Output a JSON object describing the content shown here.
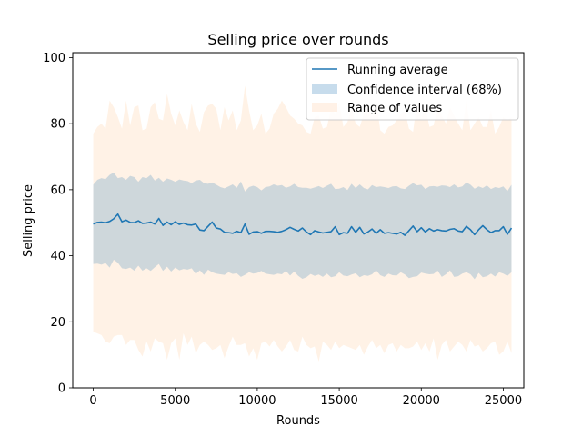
{
  "chart_data": {
    "type": "line",
    "title": "Selling price over rounds",
    "xlabel": "Rounds",
    "ylabel": "Selling price",
    "xlim": [
      -1250,
      26250
    ],
    "ylim": [
      0,
      101.5
    ],
    "xticks": [
      0,
      5000,
      10000,
      15000,
      20000,
      25000
    ],
    "yticks": [
      0,
      20,
      40,
      60,
      80,
      100
    ],
    "grid": false,
    "legend_position": "top-right",
    "colors": {
      "running_average": "#1f77b4",
      "confidence_interval": "#1f77b4",
      "confidence_interval_opacity": 0.22,
      "range_of_values": "#ff7f0e",
      "range_of_values_opacity": 0.1,
      "axes": "#000000"
    },
    "x_step": 250,
    "x_start": 0,
    "series": [
      {
        "name": "Running average",
        "kind": "line",
        "values": [
          49.6,
          50.1,
          50.2,
          50.0,
          50.4,
          51.2,
          52.6,
          50.3,
          50.8,
          50.1,
          50.0,
          50.6,
          49.8,
          49.9,
          50.2,
          49.6,
          51.3,
          49.2,
          50.2,
          49.4,
          50.3,
          49.5,
          49.9,
          49.4,
          49.3,
          49.6,
          47.8,
          47.6,
          48.9,
          50.2,
          48.4,
          48.1,
          47.1,
          47.0,
          46.8,
          47.4,
          47.0,
          49.6,
          46.5,
          47.2,
          47.3,
          46.8,
          47.4,
          47.4,
          47.3,
          47.1,
          47.4,
          47.9,
          48.6,
          48.0,
          47.5,
          48.4,
          47.2,
          46.4,
          47.6,
          47.2,
          46.9,
          47.1,
          47.3,
          48.8,
          46.4,
          47.0,
          46.8,
          48.8,
          47.1,
          48.6,
          46.6,
          47.2,
          48.1,
          46.8,
          47.9,
          46.8,
          47.0,
          46.8,
          46.6,
          47.1,
          46.2,
          47.6,
          49.0,
          47.3,
          48.5,
          47.2,
          48.2,
          47.5,
          47.9,
          47.6,
          47.5,
          48.0,
          48.2,
          47.5,
          47.3,
          48.9,
          47.9,
          46.4,
          47.9,
          49.1,
          47.9,
          47.0,
          47.6,
          47.6,
          48.8,
          46.5,
          48.4
        ]
      },
      {
        "name": "Confidence interval (68%)",
        "kind": "band",
        "upper": [
          61.5,
          63.0,
          63.5,
          63.2,
          64.5,
          65.2,
          63.5,
          63.8,
          63.0,
          64.2,
          63.8,
          62.4,
          63.8,
          63.5,
          64.5,
          62.8,
          63.6,
          62.4,
          63.4,
          63.0,
          62.4,
          63.1,
          62.8,
          62.6,
          62.0,
          62.8,
          63.0,
          62.0,
          61.8,
          62.2,
          61.5,
          60.8,
          60.4,
          61.0,
          61.6,
          60.6,
          62.5,
          59.5,
          60.8,
          61.2,
          60.8,
          59.8,
          60.8,
          61.0,
          61.6,
          61.2,
          61.4,
          60.6,
          61.0,
          61.8,
          60.8,
          60.6,
          60.6,
          60.3,
          60.7,
          61.1,
          60.5,
          61.2,
          61.8,
          60.2,
          60.3,
          60.8,
          59.9,
          61.8,
          60.5,
          61.6,
          60.5,
          60.1,
          61.4,
          60.8,
          61.0,
          60.8,
          60.5,
          61.0,
          61.1,
          60.4,
          60.2,
          61.2,
          62.0,
          61.3,
          61.5,
          60.2,
          61.0,
          61.1,
          60.9,
          61.3,
          61.2,
          60.8,
          61.6,
          60.7,
          61.0,
          62.2,
          61.5,
          60.3,
          61.0,
          60.5,
          61.3,
          60.2,
          60.8,
          60.5,
          61.0,
          59.6,
          61.5
        ],
        "lower": [
          37.5,
          37.6,
          37.3,
          37.8,
          36.4,
          38.8,
          37.9,
          36.2,
          36.0,
          36.4,
          35.5,
          37.0,
          35.5,
          36.2,
          35.4,
          36.5,
          37.5,
          35.4,
          36.7,
          35.2,
          36.4,
          35.6,
          36.0,
          35.8,
          36.2,
          34.5,
          35.6,
          34.2,
          35.8,
          35.0,
          34.6,
          34.4,
          34.2,
          35.0,
          34.5,
          34.7,
          33.6,
          34.2,
          35.0,
          34.6,
          34.8,
          35.4,
          34.6,
          34.4,
          34.2,
          34.6,
          34.4,
          35.4,
          34.0,
          35.2,
          33.9,
          33.0,
          33.5,
          34.5,
          33.9,
          34.3,
          33.6,
          34.6,
          33.5,
          33.8,
          35.0,
          34.0,
          33.8,
          34.3,
          34.7,
          33.5,
          34.1,
          33.9,
          34.4,
          35.6,
          34.1,
          33.6,
          34.6,
          34.1,
          34.0,
          35.0,
          34.3,
          33.2,
          33.6,
          33.8,
          34.9,
          34.6,
          34.4,
          34.5,
          35.5,
          33.6,
          34.4,
          35.6,
          33.6,
          33.8,
          34.6,
          35.0,
          34.4,
          32.9,
          34.8,
          33.5,
          33.8,
          34.6,
          33.7,
          35.0,
          34.6,
          33.9,
          35.0
        ]
      },
      {
        "name": "Range of values",
        "kind": "band",
        "upper": [
          77.0,
          79.0,
          80.0,
          78.5,
          87.0,
          85.0,
          82.0,
          78.5,
          87.0,
          79.5,
          85.0,
          85.5,
          78.0,
          78.5,
          85.0,
          86.5,
          81.5,
          81.0,
          89.0,
          83.0,
          79.5,
          84.0,
          80.5,
          78.0,
          86.0,
          80.0,
          77.5,
          83.5,
          85.5,
          86.0,
          84.5,
          78.0,
          85.0,
          81.0,
          84.0,
          78.0,
          81.0,
          91.5,
          84.0,
          78.0,
          79.5,
          83.0,
          77.0,
          78.5,
          83.0,
          84.5,
          87.0,
          85.0,
          82.5,
          81.5,
          80.0,
          79.5,
          77.5,
          77.0,
          82.0,
          82.5,
          78.5,
          79.0,
          84.5,
          83.0,
          86.5,
          79.0,
          80.5,
          85.0,
          80.0,
          79.0,
          83.0,
          86.0,
          82.0,
          87.0,
          78.0,
          77.0,
          79.0,
          79.5,
          81.0,
          83.0,
          84.0,
          78.5,
          77.5,
          87.0,
          81.5,
          85.0,
          79.0,
          79.5,
          85.0,
          82.5,
          80.0,
          85.0,
          82.5,
          80.0,
          78.0,
          87.0,
          78.0,
          80.0,
          82.0,
          79.0,
          79.0,
          84.0,
          77.0,
          79.0,
          82.0,
          81.0,
          82.0
        ],
        "lower": [
          17.0,
          16.5,
          16.0,
          14.0,
          13.5,
          15.5,
          16.0,
          16.0,
          13.0,
          14.5,
          14.5,
          11.5,
          9.5,
          14.0,
          11.0,
          15.0,
          14.0,
          13.5,
          8.5,
          13.5,
          15.0,
          8.5,
          16.5,
          13.0,
          15.5,
          10.5,
          13.0,
          14.0,
          13.0,
          11.5,
          12.0,
          13.0,
          9.0,
          12.5,
          15.5,
          13.0,
          13.0,
          13.5,
          9.5,
          12.0,
          8.5,
          13.5,
          14.0,
          12.5,
          14.5,
          12.5,
          11.0,
          12.5,
          14.5,
          11.5,
          11.0,
          15.5,
          13.0,
          12.0,
          12.5,
          8.0,
          14.0,
          13.0,
          11.5,
          14.0,
          12.0,
          13.0,
          12.5,
          12.0,
          11.5,
          13.0,
          10.0,
          12.5,
          14.5,
          12.0,
          13.0,
          10.5,
          13.0,
          13.5,
          11.0,
          13.0,
          12.0,
          12.0,
          12.5,
          14.0,
          11.5,
          13.5,
          11.0,
          15.0,
          8.5,
          13.0,
          14.5,
          11.0,
          12.5,
          14.0,
          13.0,
          11.0,
          14.5,
          12.5,
          13.0,
          11.0,
          12.0,
          13.5,
          14.0,
          10.0,
          11.0,
          14.0,
          10.5
        ]
      }
    ],
    "legend": [
      {
        "label": "Running average",
        "symbol": "line",
        "color": "#1f77b4"
      },
      {
        "label": "Confidence interval (68%)",
        "symbol": "patch",
        "color": "#c7dcec"
      },
      {
        "label": "Range of values",
        "symbol": "patch",
        "color": "#fff1e6"
      }
    ]
  }
}
